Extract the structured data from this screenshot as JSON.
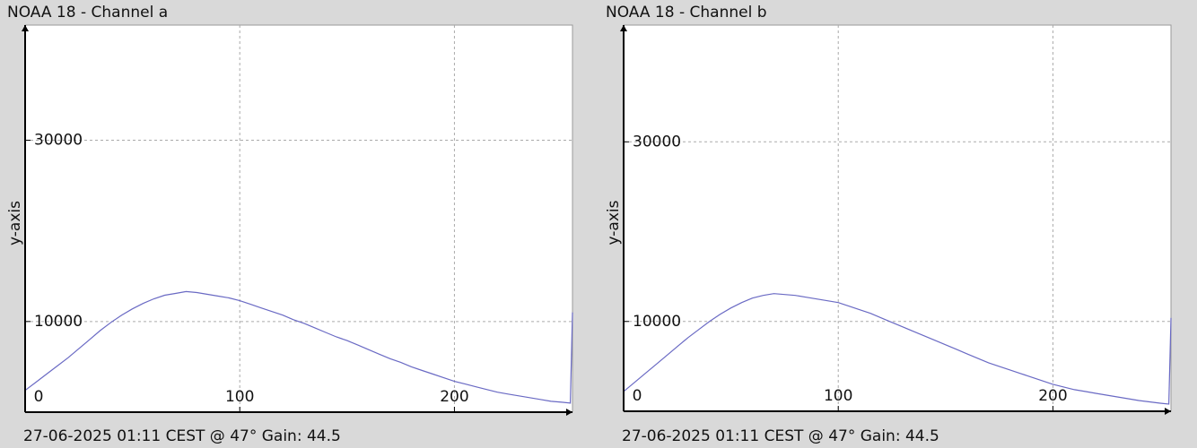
{
  "chart_data": [
    {
      "type": "line",
      "title": "NOAA 18 - Channel a",
      "ylabel": "y-axis",
      "note": "27-06-2025 01:11 CEST @ 47° Gain: 44.5",
      "x": [
        0,
        5,
        10,
        15,
        20,
        25,
        30,
        35,
        40,
        45,
        50,
        55,
        60,
        65,
        70,
        75,
        80,
        85,
        90,
        95,
        100,
        105,
        110,
        115,
        120,
        125,
        130,
        135,
        140,
        145,
        150,
        155,
        160,
        165,
        170,
        175,
        180,
        185,
        190,
        195,
        200,
        205,
        210,
        215,
        220,
        225,
        230,
        235,
        240,
        245,
        250,
        254,
        255
      ],
      "series": [
        {
          "color": "#6a6ac4",
          "values": [
            2400,
            3300,
            4200,
            5100,
            6000,
            7000,
            8000,
            9000,
            9900,
            10700,
            11400,
            12000,
            12500,
            12900,
            13100,
            13300,
            13200,
            13000,
            12800,
            12600,
            12300,
            11900,
            11500,
            11100,
            10700,
            10200,
            9800,
            9300,
            8800,
            8300,
            7900,
            7400,
            6900,
            6400,
            5900,
            5500,
            5000,
            4600,
            4200,
            3800,
            3400,
            3100,
            2800,
            2500,
            2200,
            2000,
            1800,
            1600,
            1400,
            1200,
            1100,
            1000,
            11000
          ]
        }
      ],
      "xlim": [
        0,
        255
      ],
      "ylim": [
        0,
        42700
      ],
      "xticks": [
        0,
        100,
        200
      ],
      "yticks": [
        10000,
        30000
      ],
      "grid": true
    },
    {
      "type": "line",
      "title": "NOAA 18 - Channel b",
      "ylabel": "y-axis",
      "note": "27-06-2025 01:11 CEST @ 47° Gain: 44.5",
      "x": [
        0,
        5,
        10,
        15,
        20,
        25,
        30,
        35,
        40,
        45,
        50,
        55,
        60,
        65,
        70,
        75,
        80,
        85,
        90,
        95,
        100,
        105,
        110,
        115,
        120,
        125,
        130,
        135,
        140,
        145,
        150,
        155,
        160,
        165,
        170,
        175,
        180,
        185,
        190,
        195,
        200,
        205,
        210,
        215,
        220,
        225,
        230,
        235,
        240,
        245,
        250,
        254,
        255
      ],
      "series": [
        {
          "color": "#6a6ac4",
          "values": [
            2200,
            3200,
            4200,
            5200,
            6200,
            7200,
            8200,
            9100,
            10000,
            10800,
            11500,
            12100,
            12600,
            12900,
            13100,
            13000,
            12900,
            12700,
            12500,
            12300,
            12100,
            11700,
            11300,
            10900,
            10400,
            9900,
            9400,
            8900,
            8400,
            7900,
            7400,
            6900,
            6400,
            5900,
            5400,
            5000,
            4600,
            4200,
            3800,
            3400,
            3000,
            2700,
            2400,
            2200,
            2000,
            1800,
            1600,
            1400,
            1200,
            1050,
            900,
            800,
            10400
          ]
        }
      ],
      "xlim": [
        0,
        255
      ],
      "ylim": [
        0,
        43000
      ],
      "xticks": [
        0,
        100,
        200
      ],
      "yticks": [
        10000,
        30000
      ],
      "grid": true
    }
  ]
}
